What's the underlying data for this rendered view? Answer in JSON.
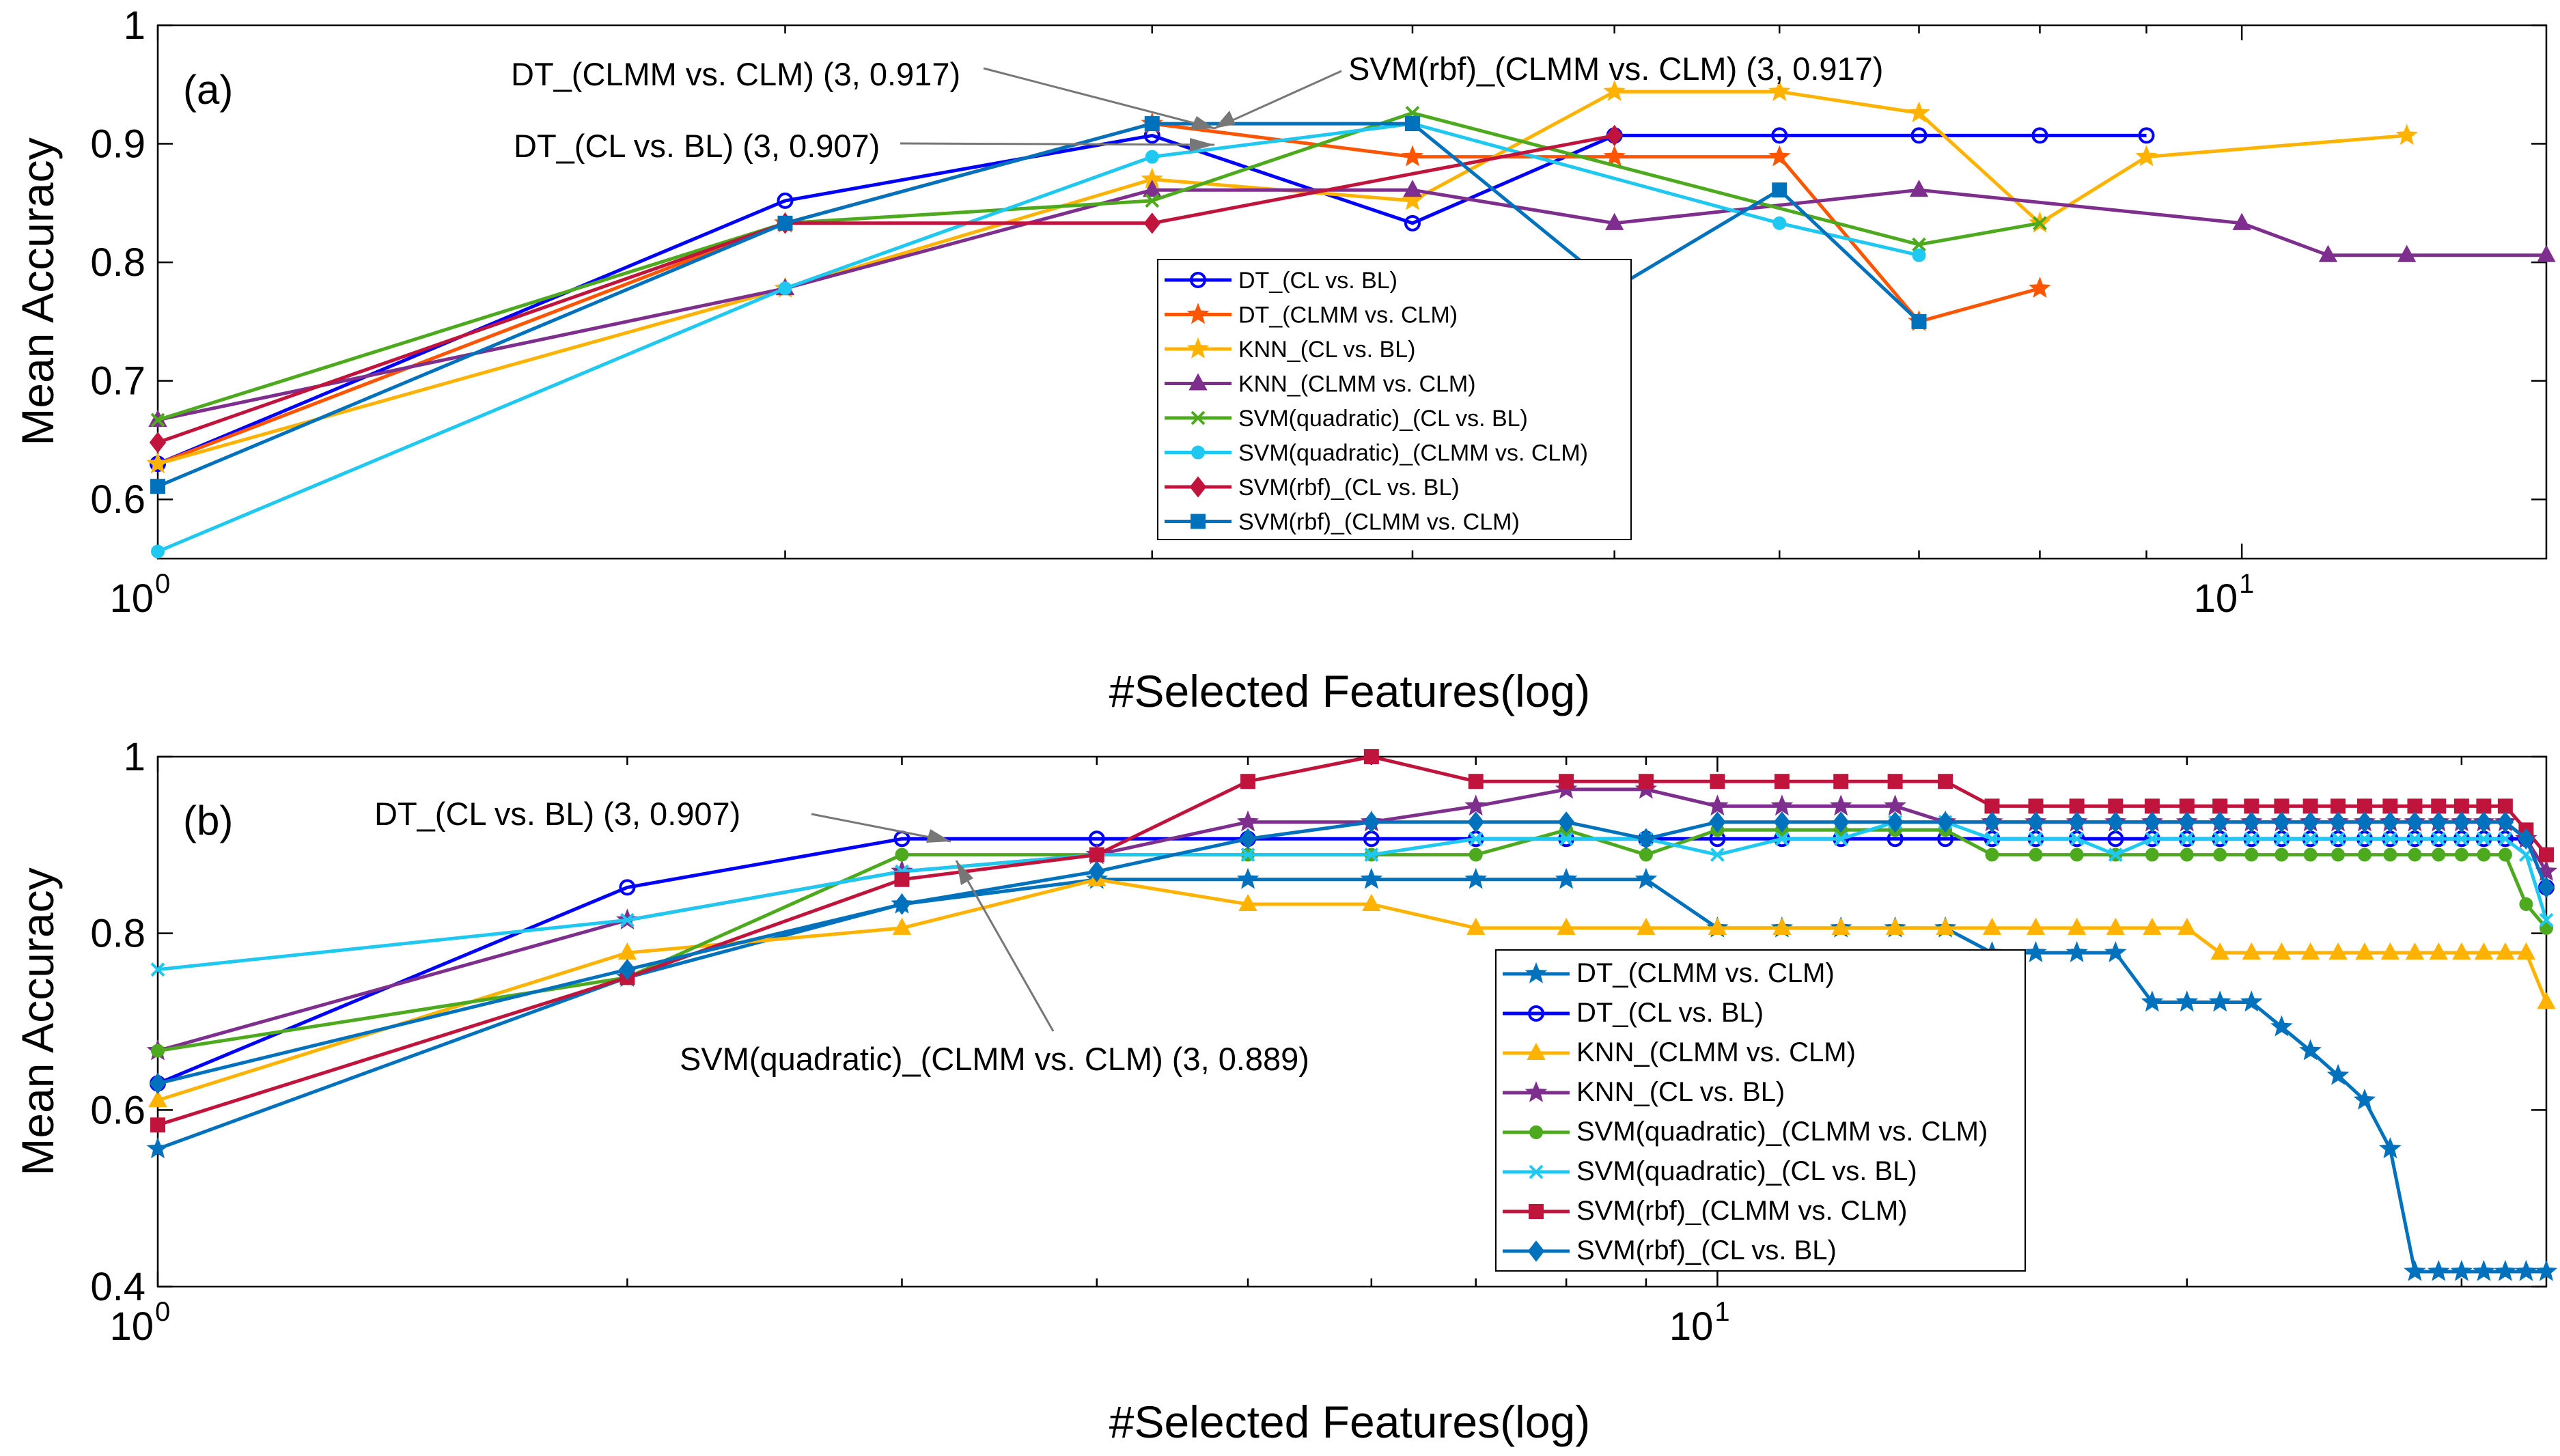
{
  "chart_data": [
    {
      "type": "line",
      "panel_label": "(a)",
      "xscale": "log",
      "xlabel": "#Selected Features(log)",
      "ylabel": "Mean Accuracy",
      "xlim": [
        1,
        14
      ],
      "ylim": [
        0.55,
        1.0
      ],
      "yticks": [
        "0.6",
        "0.7",
        "0.8",
        "0.9",
        "1"
      ],
      "yticks_values": [
        0.6,
        0.7,
        0.8,
        0.9,
        1.0
      ],
      "xticks": [
        {
          "base": "10",
          "exp": "0",
          "value": 1
        },
        {
          "base": "10",
          "exp": "1",
          "value": 10
        }
      ],
      "legend_position": "center",
      "series": [
        {
          "name": "DT_(CL vs. BL)",
          "color": "#0000FF",
          "marker": "circle",
          "x": [
            1,
            2,
            3,
            4,
            5,
            6,
            7,
            8,
            9
          ],
          "y": [
            0.63,
            0.852,
            0.907,
            0.833,
            0.907,
            0.907,
            0.907,
            0.907,
            0.907
          ]
        },
        {
          "name": "DT_(CLMM vs. CLM)",
          "color": "#FF5500",
          "marker": "star",
          "x": [
            1,
            2,
            3,
            4,
            5,
            6,
            7,
            8
          ],
          "y": [
            0.63,
            0.833,
            0.917,
            0.889,
            0.889,
            0.889,
            0.75,
            0.778
          ]
        },
        {
          "name": "KNN_(CL vs. BL)",
          "color": "#FFB300",
          "marker": "star",
          "x": [
            1,
            2,
            3,
            4,
            5,
            6,
            7,
            8,
            9,
            12
          ],
          "y": [
            0.63,
            0.778,
            0.87,
            0.852,
            0.944,
            0.944,
            0.926,
            0.833,
            0.889,
            0.907
          ]
        },
        {
          "name": "KNN_(CLMM vs. CLM)",
          "color": "#7E2F8E",
          "marker": "triangle",
          "x": [
            1,
            2,
            3,
            4,
            5,
            7,
            10,
            11,
            12,
            14
          ],
          "y": [
            0.667,
            0.778,
            0.861,
            0.861,
            0.833,
            0.861,
            0.833,
            0.806,
            0.806,
            0.806
          ]
        },
        {
          "name": "SVM(quadratic)_(CL vs. BL)",
          "color": "#4DAA1E",
          "marker": "x",
          "x": [
            1,
            2,
            3,
            4,
            7,
            8
          ],
          "y": [
            0.667,
            0.833,
            0.852,
            0.926,
            0.815,
            0.833
          ]
        },
        {
          "name": "SVM(quadratic)_(CLMM vs. CLM)",
          "color": "#1EC8F0",
          "marker": "dot",
          "x": [
            1,
            2,
            3,
            4,
            6,
            7
          ],
          "y": [
            0.556,
            0.778,
            0.889,
            0.917,
            0.833,
            0.806
          ]
        },
        {
          "name": "SVM(rbf)_(CL vs. BL)",
          "color": "#C0143C",
          "marker": "diamond",
          "x": [
            1,
            2,
            3,
            5
          ],
          "y": [
            0.648,
            0.833,
            0.833,
            0.907
          ]
        },
        {
          "name": "SVM(rbf)_(CLMM vs. CLM)",
          "color": "#0072BD",
          "marker": "square",
          "x": [
            1,
            2,
            3,
            4,
            5,
            6,
            7
          ],
          "y": [
            0.611,
            0.833,
            0.917,
            0.917,
            0.778,
            0.861,
            0.75
          ]
        }
      ],
      "annotations": [
        {
          "text": "DT_(CLMM vs. CLM) (3, 0.917)",
          "target": [
            3,
            0.917
          ]
        },
        {
          "text": "SVM(rbf)_(CLMM vs. CLM) (3, 0.917)",
          "target": [
            3,
            0.917
          ]
        },
        {
          "text": "DT_(CL vs. BL) (3, 0.907)",
          "target": [
            3,
            0.907
          ]
        }
      ]
    },
    {
      "type": "line",
      "panel_label": "(b)",
      "xscale": "log",
      "xlabel": "#Selected Features(log)",
      "ylabel": "Mean Accuracy",
      "xlim": [
        1,
        34
      ],
      "ylim": [
        0.4,
        1.0
      ],
      "yticks": [
        "0.4",
        "0.6",
        "0.8",
        "1"
      ],
      "yticks_values": [
        0.4,
        0.6,
        0.8,
        1.0
      ],
      "xticks": [
        {
          "base": "10",
          "exp": "0",
          "value": 1
        },
        {
          "base": "10",
          "exp": "1",
          "value": 10
        }
      ],
      "legend_position": "lower-right",
      "series": [
        {
          "name": "DT_(CLMM vs. CLM)",
          "color": "#0072BD",
          "marker": "star",
          "x": [
            1,
            2,
            3,
            4,
            5,
            6,
            7,
            8,
            9,
            10,
            11,
            12,
            13,
            14,
            15,
            16,
            17,
            18,
            19,
            20,
            21,
            22,
            23,
            24,
            25,
            26,
            27,
            28,
            29,
            30,
            31,
            32,
            33,
            34
          ],
          "y": [
            0.556,
            0.75,
            0.833,
            0.861,
            0.861,
            0.861,
            0.861,
            0.861,
            0.861,
            0.806,
            0.806,
            0.806,
            0.806,
            0.806,
            0.778,
            0.778,
            0.778,
            0.778,
            0.722,
            0.722,
            0.722,
            0.722,
            0.694,
            0.667,
            0.639,
            0.611,
            0.556,
            0.417,
            0.417,
            0.417,
            0.417,
            0.417,
            0.417,
            0.417
          ]
        },
        {
          "name": "DT_(CL vs. BL)",
          "color": "#0000FF",
          "marker": "circle",
          "x": [
            1,
            2,
            3,
            4,
            5,
            6,
            7,
            8,
            9,
            10,
            11,
            12,
            13,
            14,
            15,
            16,
            17,
            18,
            19,
            20,
            21,
            22,
            23,
            24,
            25,
            26,
            27,
            28,
            29,
            30,
            31,
            32,
            33,
            34
          ],
          "y": [
            0.63,
            0.852,
            0.907,
            0.907,
            0.907,
            0.907,
            0.907,
            0.907,
            0.907,
            0.907,
            0.907,
            0.907,
            0.907,
            0.907,
            0.907,
            0.907,
            0.907,
            0.907,
            0.907,
            0.907,
            0.907,
            0.907,
            0.907,
            0.907,
            0.907,
            0.907,
            0.907,
            0.907,
            0.907,
            0.907,
            0.907,
            0.907,
            0.907,
            0.852
          ]
        },
        {
          "name": "KNN_(CLMM vs. CLM)",
          "color": "#FFB300",
          "marker": "triangle",
          "x": [
            1,
            2,
            3,
            4,
            5,
            6,
            7,
            8,
            9,
            10,
            11,
            12,
            13,
            14,
            15,
            16,
            17,
            18,
            19,
            20,
            21,
            22,
            23,
            24,
            25,
            26,
            27,
            28,
            29,
            30,
            31,
            32,
            33,
            34
          ],
          "y": [
            0.611,
            0.778,
            0.806,
            0.861,
            0.833,
            0.833,
            0.806,
            0.806,
            0.806,
            0.806,
            0.806,
            0.806,
            0.806,
            0.806,
            0.806,
            0.806,
            0.806,
            0.806,
            0.806,
            0.806,
            0.778,
            0.778,
            0.778,
            0.778,
            0.778,
            0.778,
            0.778,
            0.778,
            0.778,
            0.778,
            0.778,
            0.778,
            0.778,
            0.722
          ]
        },
        {
          "name": "KNN_(CL vs. BL)",
          "color": "#7E2F8E",
          "marker": "star",
          "x": [
            1,
            2,
            3,
            4,
            5,
            6,
            7,
            8,
            9,
            10,
            11,
            12,
            13,
            14,
            15,
            16,
            17,
            18,
            19,
            20,
            21,
            22,
            23,
            24,
            25,
            26,
            27,
            28,
            29,
            30,
            31,
            32,
            33,
            34
          ],
          "y": [
            0.667,
            0.815,
            0.87,
            0.889,
            0.926,
            0.926,
            0.944,
            0.963,
            0.963,
            0.944,
            0.944,
            0.944,
            0.944,
            0.926,
            0.926,
            0.926,
            0.926,
            0.926,
            0.926,
            0.926,
            0.926,
            0.926,
            0.926,
            0.926,
            0.926,
            0.926,
            0.926,
            0.926,
            0.926,
            0.926,
            0.926,
            0.926,
            0.907,
            0.87
          ]
        },
        {
          "name": "SVM(quadratic)_(CLMM vs. CLM)",
          "color": "#4DAA1E",
          "marker": "dot",
          "x": [
            1,
            2,
            3,
            4,
            5,
            6,
            7,
            8,
            9,
            10,
            11,
            12,
            13,
            14,
            15,
            16,
            17,
            18,
            19,
            20,
            21,
            22,
            23,
            24,
            25,
            26,
            27,
            28,
            29,
            30,
            31,
            32,
            33,
            34
          ],
          "y": [
            0.667,
            0.75,
            0.889,
            0.889,
            0.889,
            0.889,
            0.889,
            0.917,
            0.889,
            0.917,
            0.917,
            0.917,
            0.917,
            0.917,
            0.889,
            0.889,
            0.889,
            0.889,
            0.889,
            0.889,
            0.889,
            0.889,
            0.889,
            0.889,
            0.889,
            0.889,
            0.889,
            0.889,
            0.889,
            0.889,
            0.889,
            0.889,
            0.833,
            0.806
          ]
        },
        {
          "name": "SVM(quadratic)_(CL vs. BL)",
          "color": "#1EC8F0",
          "marker": "x",
          "x": [
            1,
            2,
            3,
            4,
            5,
            6,
            7,
            8,
            9,
            10,
            11,
            12,
            13,
            14,
            15,
            16,
            17,
            18,
            19,
            20,
            21,
            22,
            23,
            24,
            25,
            26,
            27,
            28,
            29,
            30,
            31,
            32,
            33,
            34
          ],
          "y": [
            0.759,
            0.815,
            0.87,
            0.889,
            0.889,
            0.889,
            0.907,
            0.907,
            0.907,
            0.889,
            0.907,
            0.907,
            0.926,
            0.926,
            0.907,
            0.907,
            0.907,
            0.889,
            0.907,
            0.907,
            0.907,
            0.907,
            0.907,
            0.907,
            0.907,
            0.907,
            0.907,
            0.907,
            0.907,
            0.907,
            0.907,
            0.907,
            0.889,
            0.815
          ]
        },
        {
          "name": "SVM(rbf)_(CLMM vs. CLM)",
          "color": "#C0143C",
          "marker": "square",
          "x": [
            1,
            2,
            3,
            4,
            5,
            6,
            7,
            8,
            9,
            10,
            11,
            12,
            13,
            14,
            15,
            16,
            17,
            18,
            19,
            20,
            21,
            22,
            23,
            24,
            25,
            26,
            27,
            28,
            29,
            30,
            31,
            32,
            33,
            34
          ],
          "y": [
            0.583,
            0.75,
            0.861,
            0.889,
            0.972,
            1.0,
            0.972,
            0.972,
            0.972,
            0.972,
            0.972,
            0.972,
            0.972,
            0.972,
            0.944,
            0.944,
            0.944,
            0.944,
            0.944,
            0.944,
            0.944,
            0.944,
            0.944,
            0.944,
            0.944,
            0.944,
            0.944,
            0.944,
            0.944,
            0.944,
            0.944,
            0.944,
            0.917,
            0.889
          ]
        },
        {
          "name": "SVM(rbf)_(CL vs. BL)",
          "color": "#0072BD",
          "marker": "diamond",
          "x": [
            1,
            2,
            3,
            4,
            5,
            6,
            7,
            8,
            9,
            10,
            11,
            12,
            13,
            14,
            15,
            16,
            17,
            18,
            19,
            20,
            21,
            22,
            23,
            24,
            25,
            26,
            27,
            28,
            29,
            30,
            31,
            32,
            33,
            34
          ],
          "y": [
            0.63,
            0.759,
            0.833,
            0.87,
            0.907,
            0.926,
            0.926,
            0.926,
            0.907,
            0.926,
            0.926,
            0.926,
            0.926,
            0.926,
            0.926,
            0.926,
            0.926,
            0.926,
            0.926,
            0.926,
            0.926,
            0.926,
            0.926,
            0.926,
            0.926,
            0.926,
            0.926,
            0.926,
            0.926,
            0.926,
            0.926,
            0.926,
            0.907,
            0.852
          ]
        }
      ],
      "annotations": [
        {
          "text": "DT_(CL vs. BL) (3, 0.907)",
          "target": [
            3,
            0.907
          ]
        },
        {
          "text": "SVM(quadratic)_(CLMM vs. CLM) (3, 0.889)",
          "target": [
            3,
            0.889
          ]
        }
      ]
    }
  ]
}
